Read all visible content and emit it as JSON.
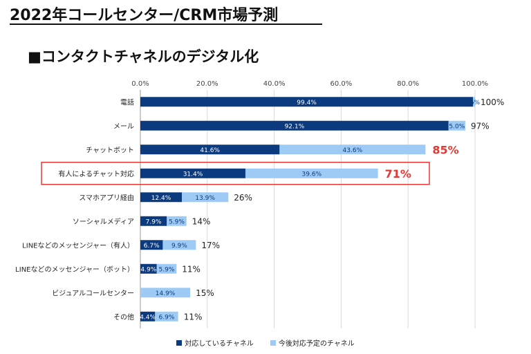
{
  "header": {
    "title": "2022年コールセンター/CRM市場予測",
    "section": "■コンタクトチャネルのデジタル化"
  },
  "colors": {
    "current": "#0b3a7e",
    "planned": "#9dcbf5",
    "highlight": "#e53935"
  },
  "legend": {
    "current": "対応しているチャネル",
    "planned": "今後対応予定のチャネル"
  },
  "chart_data": {
    "type": "bar",
    "orientation": "horizontal",
    "stacked": true,
    "xlim": [
      0,
      100
    ],
    "x_ticks": [
      "0.0%",
      "20.0%",
      "40.0%",
      "60.0%",
      "80.0%",
      "100.0%"
    ],
    "grid": true,
    "legend_position": "bottom",
    "categories": [
      "電話",
      "メール",
      "チャットボット",
      "有人によるチャット対応",
      "スマホアプリ経由",
      "ソーシャルメディア",
      "LINEなどのメッセンジャー（有人）",
      "LINEなどのメッセンジャー（ボット）",
      "ビジュアルコールセンター",
      "その他"
    ],
    "series": [
      {
        "name": "対応しているチャネル",
        "values": [
          99.4,
          92.1,
          41.6,
          31.4,
          12.4,
          7.9,
          6.7,
          4.9,
          0,
          4.4
        ],
        "labels": [
          "99.4%",
          "92.1%",
          "41.6%",
          "31.4%",
          "12.4%",
          "7.9%",
          "6.7%",
          "4.9%",
          "",
          "4.4%"
        ]
      },
      {
        "name": "今後対応予定のチャネル",
        "values": [
          0.6,
          5.0,
          43.6,
          39.6,
          13.9,
          5.9,
          9.9,
          5.9,
          14.9,
          6.9
        ],
        "labels": [
          ".6%",
          "5.0%",
          "43.6%",
          "39.6%",
          "13.9%",
          "5.9%",
          "9.9%",
          "5.9%",
          "14.9%",
          "6.9%"
        ]
      }
    ],
    "totals": [
      "100%",
      "97%",
      "85%",
      "71%",
      "26%",
      "14%",
      "17%",
      "11%",
      "15%",
      "11%"
    ],
    "emphasized_totals": [
      2,
      3
    ],
    "highlighted_category": 3
  }
}
